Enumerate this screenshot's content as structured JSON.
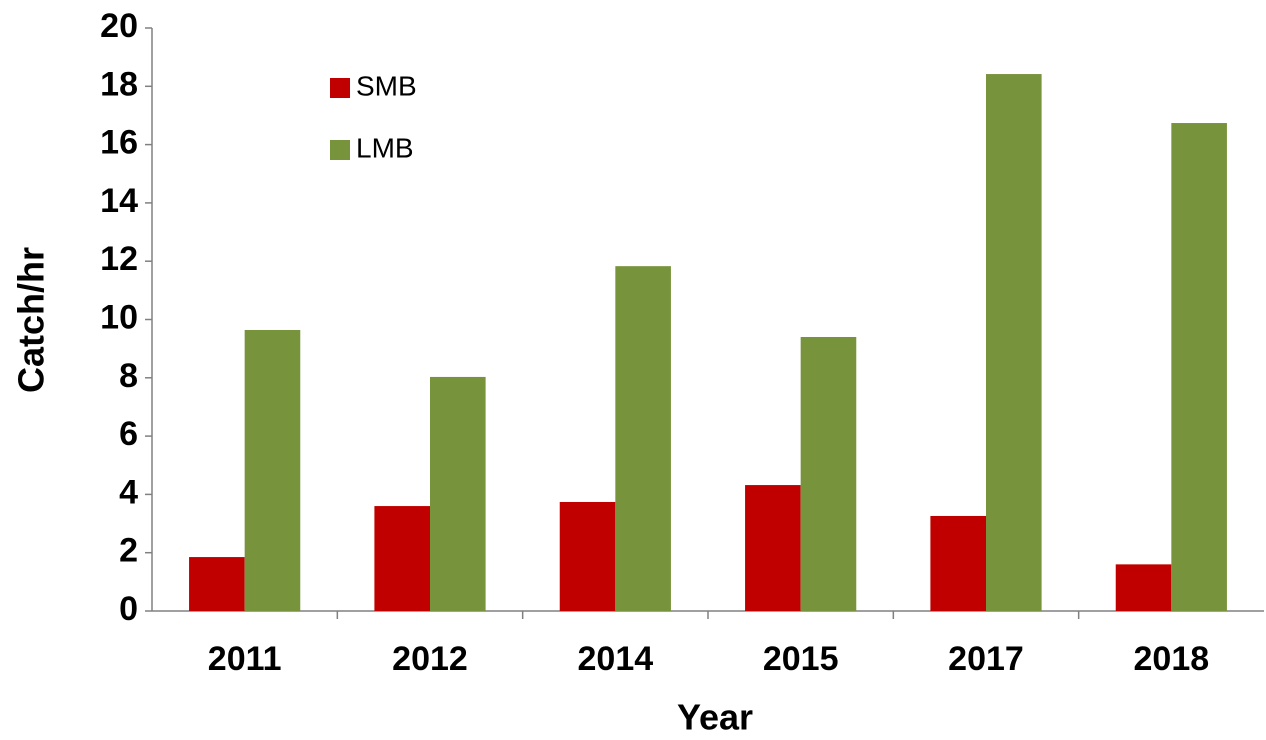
{
  "chart_data": {
    "type": "bar",
    "x_label": "Year",
    "y_label": "Catch/hr",
    "categories": [
      "2011",
      "2012",
      "2014",
      "2015",
      "2017",
      "2018"
    ],
    "series": [
      {
        "name": "SMB",
        "color": "#c00000",
        "values": [
          1.85,
          3.6,
          3.74,
          4.32,
          3.26,
          1.6
        ]
      },
      {
        "name": "LMB",
        "color": "#77933c",
        "values": [
          9.64,
          8.03,
          11.83,
          9.4,
          18.42,
          16.74
        ]
      }
    ],
    "ylim": [
      0,
      20
    ],
    "yticks": [
      0,
      2,
      4,
      6,
      8,
      10,
      12,
      14,
      16,
      18,
      20
    ],
    "grid": false,
    "legend": "upper left"
  }
}
